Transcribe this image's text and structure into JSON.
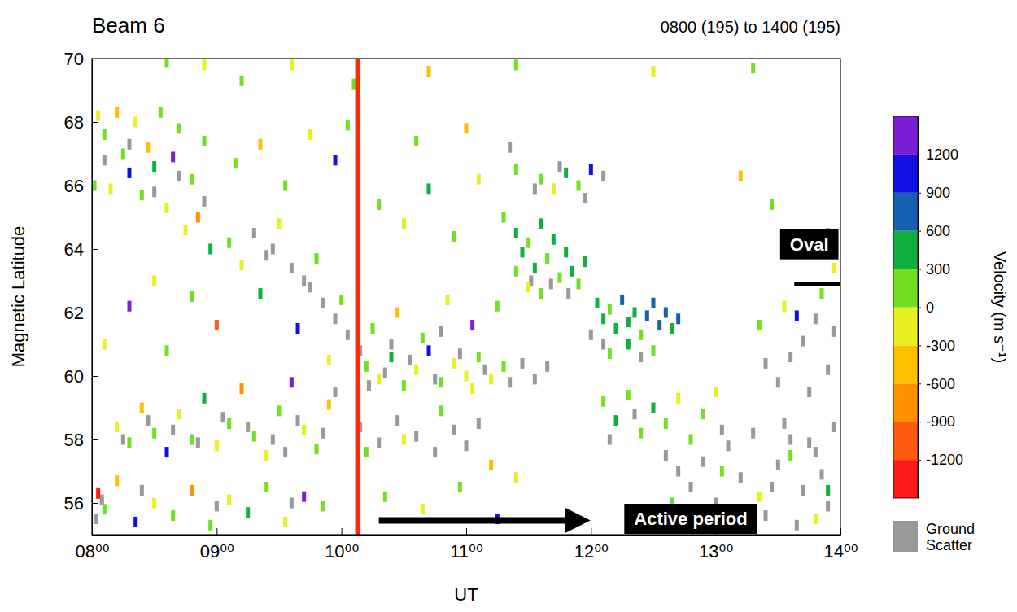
{
  "chart_data": {
    "type": "heatmap",
    "title": "Beam 6",
    "subtitle": "0800 (195) to 1400 (195)",
    "x_label": "UT",
    "y_label": "Magnetic Latitude",
    "xlim": [
      8,
      14
    ],
    "xticks": [
      {
        "value": 8,
        "label": "08⁰⁰"
      },
      {
        "value": 9,
        "label": "09⁰⁰"
      },
      {
        "value": 10,
        "label": "10⁰⁰"
      },
      {
        "value": 11,
        "label": "11⁰⁰"
      },
      {
        "value": 12,
        "label": "12⁰⁰"
      },
      {
        "value": 13,
        "label": "13⁰⁰"
      },
      {
        "value": 14,
        "label": "14⁰⁰"
      }
    ],
    "ylim": [
      55,
      70
    ],
    "yticks": [
      56,
      58,
      60,
      62,
      64,
      66,
      68,
      70
    ],
    "colorbar": {
      "label": "Velocity (m s⁻¹)",
      "range": [
        -1500,
        1500
      ],
      "ticks": [
        -1200,
        -900,
        -600,
        -300,
        0,
        300,
        600,
        900,
        1200
      ],
      "colors": [
        "#ff1a1a",
        "#ff5a10",
        "#ff9000",
        "#ffc000",
        "#e8f020",
        "#70e020",
        "#10b040",
        "#1560b0",
        "#1010e0",
        "#7a1fd6"
      ]
    },
    "cells": [
      [
        8.05,
        68.2,
        -150
      ],
      [
        8.1,
        67.6,
        150
      ],
      [
        8.2,
        68.3,
        -450
      ],
      [
        8.25,
        67.0,
        150
      ],
      [
        8.3,
        66.4,
        1050
      ],
      [
        8.35,
        68.0,
        -150
      ],
      [
        8.4,
        65.7,
        150
      ],
      [
        8.45,
        67.2,
        -450
      ],
      [
        8.5,
        66.6,
        450
      ],
      [
        8.55,
        68.3,
        150
      ],
      [
        8.6,
        65.3,
        -150
      ],
      [
        8.65,
        66.9,
        1350
      ],
      [
        8.7,
        67.8,
        150
      ],
      [
        8.75,
        64.6,
        -150
      ],
      [
        8.8,
        66.2,
        150
      ],
      [
        8.85,
        65.0,
        -750
      ],
      [
        8.9,
        67.4,
        150
      ],
      [
        8.95,
        64.0,
        450
      ],
      [
        8.15,
        65.9,
        -150
      ],
      [
        8.02,
        66.0,
        150
      ],
      [
        8.2,
        58.4,
        -150
      ],
      [
        8.3,
        57.9,
        150
      ],
      [
        8.4,
        59.0,
        -450
      ],
      [
        8.5,
        58.2,
        150
      ],
      [
        8.6,
        57.6,
        1050
      ],
      [
        8.7,
        58.8,
        -150
      ],
      [
        8.8,
        58.0,
        150
      ],
      [
        8.9,
        59.3,
        450
      ],
      [
        9.0,
        57.8,
        -150
      ],
      [
        9.1,
        58.5,
        150
      ],
      [
        9.2,
        59.6,
        -750
      ],
      [
        9.3,
        58.1,
        150
      ],
      [
        9.4,
        57.5,
        -150
      ],
      [
        9.5,
        58.9,
        150
      ],
      [
        9.6,
        59.8,
        1350
      ],
      [
        9.7,
        58.3,
        -150
      ],
      [
        9.8,
        57.7,
        150
      ],
      [
        9.9,
        59.1,
        -450
      ],
      [
        8.05,
        56.3,
        -1350
      ],
      [
        8.1,
        55.8,
        150
      ],
      [
        8.2,
        56.7,
        -450
      ],
      [
        8.35,
        55.4,
        1050
      ],
      [
        8.5,
        56.0,
        -150
      ],
      [
        8.65,
        55.6,
        150
      ],
      [
        8.8,
        56.4,
        -750
      ],
      [
        8.95,
        55.3,
        150
      ],
      [
        9.1,
        56.1,
        -150
      ],
      [
        9.25,
        55.7,
        450
      ],
      [
        9.4,
        56.5,
        150
      ],
      [
        9.55,
        55.4,
        -150
      ],
      [
        9.7,
        56.2,
        1350
      ],
      [
        9.85,
        55.9,
        150
      ],
      [
        9.1,
        64.2,
        150
      ],
      [
        9.2,
        63.5,
        -150
      ],
      [
        9.35,
        62.6,
        450
      ],
      [
        9.5,
        64.8,
        -150
      ],
      [
        9.65,
        61.5,
        1050
      ],
      [
        9.8,
        63.7,
        150
      ],
      [
        9.9,
        60.5,
        -150
      ],
      [
        10.0,
        62.4,
        150
      ],
      [
        9.15,
        66.7,
        150
      ],
      [
        9.35,
        67.3,
        -450
      ],
      [
        9.55,
        66.0,
        150
      ],
      [
        9.75,
        67.6,
        -150
      ],
      [
        9.95,
        66.8,
        1050
      ],
      [
        10.05,
        67.9,
        150
      ],
      [
        10.2,
        60.3,
        150
      ],
      [
        10.3,
        59.9,
        -150
      ],
      [
        10.4,
        60.6,
        450
      ],
      [
        10.5,
        59.7,
        150
      ],
      [
        10.6,
        60.2,
        -150
      ],
      [
        10.7,
        60.8,
        1050
      ],
      [
        10.8,
        59.8,
        150
      ],
      [
        10.9,
        60.4,
        -150
      ],
      [
        11.0,
        60.0,
        -150
      ],
      [
        11.05,
        59.6,
        -150
      ],
      [
        11.1,
        60.6,
        150
      ],
      [
        11.2,
        59.9,
        -150
      ],
      [
        11.3,
        60.3,
        150
      ],
      [
        10.25,
        61.5,
        150
      ],
      [
        10.45,
        62.0,
        -450
      ],
      [
        10.65,
        61.2,
        150
      ],
      [
        10.85,
        62.4,
        -150
      ],
      [
        11.05,
        61.6,
        1350
      ],
      [
        11.25,
        62.2,
        150
      ],
      [
        10.2,
        57.6,
        150
      ],
      [
        10.5,
        58.0,
        -150
      ],
      [
        10.8,
        58.9,
        150
      ],
      [
        11.2,
        57.2,
        -450
      ],
      [
        10.35,
        56.2,
        150
      ],
      [
        10.65,
        55.8,
        -150
      ],
      [
        10.95,
        56.5,
        150
      ],
      [
        11.25,
        55.5,
        1050
      ],
      [
        11.4,
        56.8,
        -150
      ],
      [
        10.3,
        65.4,
        150
      ],
      [
        10.5,
        64.8,
        -150
      ],
      [
        10.7,
        65.9,
        450
      ],
      [
        10.9,
        64.4,
        150
      ],
      [
        11.1,
        66.2,
        -150
      ],
      [
        11.3,
        65.0,
        150
      ],
      [
        10.6,
        67.4,
        150
      ],
      [
        11.0,
        67.8,
        -450
      ],
      [
        11.4,
        66.5,
        150
      ],
      [
        11.6,
        66.2,
        150
      ],
      [
        11.7,
        65.9,
        -150
      ],
      [
        11.8,
        66.4,
        450
      ],
      [
        11.9,
        66.0,
        150
      ],
      [
        12.0,
        66.5,
        1050
      ],
      [
        11.4,
        64.5,
        450
      ],
      [
        11.45,
        63.9,
        450
      ],
      [
        11.5,
        64.2,
        150
      ],
      [
        11.55,
        63.4,
        450
      ],
      [
        11.6,
        64.8,
        450
      ],
      [
        11.65,
        63.7,
        150
      ],
      [
        11.7,
        64.3,
        450
      ],
      [
        11.75,
        63.1,
        150
      ],
      [
        11.8,
        63.9,
        450
      ],
      [
        11.85,
        63.3,
        450
      ],
      [
        11.9,
        62.9,
        150
      ],
      [
        11.5,
        62.8,
        -150
      ],
      [
        11.95,
        63.6,
        450
      ],
      [
        11.4,
        63.3,
        150
      ],
      [
        11.6,
        62.6,
        150
      ],
      [
        12.05,
        62.3,
        450
      ],
      [
        12.1,
        61.8,
        450
      ],
      [
        12.15,
        62.1,
        150
      ],
      [
        12.2,
        61.5,
        450
      ],
      [
        12.25,
        62.4,
        750
      ],
      [
        12.3,
        61.7,
        450
      ],
      [
        12.35,
        62.0,
        450
      ],
      [
        12.4,
        61.3,
        150
      ],
      [
        12.45,
        61.9,
        750
      ],
      [
        12.5,
        62.3,
        750
      ],
      [
        12.55,
        61.6,
        750
      ],
      [
        12.6,
        62.0,
        750
      ],
      [
        12.65,
        61.5,
        450
      ],
      [
        12.7,
        61.8,
        750
      ],
      [
        12.3,
        61.0,
        450
      ],
      [
        12.5,
        60.8,
        150
      ],
      [
        12.15,
        60.7,
        150
      ],
      [
        12.1,
        59.2,
        150
      ],
      [
        12.2,
        58.6,
        450
      ],
      [
        12.3,
        59.4,
        150
      ],
      [
        12.4,
        58.2,
        150
      ],
      [
        12.5,
        59.0,
        450
      ],
      [
        12.6,
        58.5,
        150
      ],
      [
        12.7,
        59.3,
        -150
      ],
      [
        12.8,
        58.0,
        150
      ],
      [
        12.9,
        58.8,
        150
      ],
      [
        13.0,
        59.5,
        -150
      ],
      [
        12.65,
        56.0,
        150
      ],
      [
        12.85,
        55.4,
        -150
      ],
      [
        13.05,
        57.0,
        150
      ],
      [
        13.35,
        56.2,
        -150
      ],
      [
        13.6,
        57.5,
        150
      ],
      [
        13.8,
        55.5,
        -150
      ],
      [
        13.9,
        56.4,
        450
      ],
      [
        13.35,
        61.6,
        150
      ],
      [
        13.55,
        62.2,
        -150
      ],
      [
        13.65,
        61.9,
        1050
      ],
      [
        13.85,
        62.6,
        150
      ],
      [
        13.95,
        63.4,
        -150
      ],
      [
        13.45,
        65.4,
        150
      ],
      [
        13.2,
        66.3,
        -450
      ],
      [
        13.9,
        64.5,
        150
      ],
      [
        8.9,
        69.8,
        -150
      ],
      [
        9.2,
        69.3,
        150
      ],
      [
        9.6,
        69.8,
        -150
      ],
      [
        10.1,
        69.2,
        150
      ],
      [
        10.7,
        69.6,
        -450
      ],
      [
        11.4,
        69.8,
        150
      ],
      [
        12.5,
        69.6,
        -150
      ],
      [
        13.3,
        69.7,
        150
      ],
      [
        8.6,
        69.9,
        150
      ],
      [
        8.1,
        61.0,
        -150
      ],
      [
        8.3,
        62.2,
        1350
      ],
      [
        8.6,
        60.8,
        150
      ],
      [
        9.0,
        61.6,
        -1050
      ],
      [
        8.5,
        63.0,
        -150
      ],
      [
        8.8,
        62.5,
        150
      ]
    ],
    "ground_scatter": {
      "label": "Ground Scatter",
      "color": "#999999",
      "points": [
        [
          8.1,
          66.8
        ],
        [
          8.3,
          67.3
        ],
        [
          8.5,
          65.8
        ],
        [
          8.7,
          66.3
        ],
        [
          8.9,
          65.5
        ],
        [
          8.25,
          58.0
        ],
        [
          8.45,
          58.6
        ],
        [
          8.65,
          58.3
        ],
        [
          8.85,
          57.9
        ],
        [
          9.05,
          58.7
        ],
        [
          9.25,
          58.4
        ],
        [
          9.45,
          58.0
        ],
        [
          9.65,
          58.6
        ],
        [
          9.85,
          58.2
        ],
        [
          9.95,
          59.5
        ],
        [
          9.55,
          57.6
        ],
        [
          8.03,
          55.5
        ],
        [
          8.08,
          56.1
        ],
        [
          8.4,
          56.4
        ],
        [
          9.0,
          55.9
        ],
        [
          9.6,
          56.0
        ],
        [
          9.3,
          64.5
        ],
        [
          9.45,
          64.0
        ],
        [
          9.6,
          63.4
        ],
        [
          9.75,
          62.8
        ],
        [
          9.85,
          62.3
        ],
        [
          9.95,
          61.8
        ],
        [
          10.05,
          61.3
        ],
        [
          10.15,
          60.8
        ],
        [
          9.4,
          63.8
        ],
        [
          9.7,
          63.0
        ],
        [
          10.22,
          59.7
        ],
        [
          10.35,
          60.1
        ],
        [
          10.55,
          60.5
        ],
        [
          10.75,
          59.9
        ],
        [
          10.95,
          60.7
        ],
        [
          11.15,
          60.2
        ],
        [
          11.35,
          59.8
        ],
        [
          11.45,
          60.4
        ],
        [
          11.55,
          59.9
        ],
        [
          11.65,
          60.3
        ],
        [
          10.15,
          58.4
        ],
        [
          10.3,
          57.9
        ],
        [
          10.45,
          58.6
        ],
        [
          10.6,
          58.1
        ],
        [
          10.75,
          57.6
        ],
        [
          10.9,
          58.3
        ],
        [
          11.0,
          57.8
        ],
        [
          11.1,
          58.5
        ],
        [
          10.4,
          61.0
        ],
        [
          10.8,
          61.4
        ],
        [
          11.55,
          65.9
        ],
        [
          11.75,
          66.6
        ],
        [
          11.95,
          65.6
        ],
        [
          12.1,
          66.3
        ],
        [
          11.35,
          67.2
        ],
        [
          11.52,
          63.0
        ],
        [
          11.68,
          62.9
        ],
        [
          11.82,
          62.6
        ],
        [
          12.0,
          61.3
        ],
        [
          12.1,
          61.0
        ],
        [
          12.4,
          60.6
        ],
        [
          12.15,
          58.0
        ],
        [
          12.35,
          58.8
        ],
        [
          12.6,
          57.5
        ],
        [
          12.7,
          57.0
        ],
        [
          12.8,
          56.5
        ],
        [
          12.9,
          57.3
        ],
        [
          13.0,
          56.0
        ],
        [
          13.1,
          57.8
        ],
        [
          13.2,
          56.8
        ],
        [
          13.3,
          58.2
        ],
        [
          13.4,
          55.6
        ],
        [
          13.5,
          57.2
        ],
        [
          13.6,
          58.0
        ],
        [
          13.7,
          56.4
        ],
        [
          13.8,
          57.6
        ],
        [
          13.9,
          55.9
        ],
        [
          13.95,
          58.4
        ],
        [
          13.05,
          58.3
        ],
        [
          13.25,
          55.4
        ],
        [
          13.45,
          56.5
        ],
        [
          13.65,
          55.3
        ],
        [
          13.85,
          56.9
        ],
        [
          13.15,
          55.7
        ],
        [
          13.55,
          58.5
        ],
        [
          13.75,
          57.9
        ],
        [
          13.4,
          60.4
        ],
        [
          13.5,
          59.8
        ],
        [
          13.6,
          60.6
        ],
        [
          13.7,
          61.1
        ],
        [
          13.8,
          61.8
        ],
        [
          13.9,
          60.2
        ],
        [
          13.95,
          61.4
        ],
        [
          13.75,
          59.5
        ]
      ]
    },
    "lines": [
      {
        "x": [
          10.13,
          10.13
        ],
        "y": [
          55,
          70
        ],
        "color": "#ff2a00"
      },
      {
        "x": [
          10.3,
          11.85
        ],
        "y": [
          55.45,
          55.45
        ],
        "color": "#000000",
        "marker": "arrow"
      },
      {
        "x": [
          13.63,
          14.0
        ],
        "y": [
          62.9,
          62.9
        ],
        "color": "#000000"
      }
    ],
    "annotations": [
      {
        "text": "Oval",
        "x": 13.75,
        "y": 64.15
      },
      {
        "text": "Active period",
        "x": 12.8,
        "y": 55.5
      }
    ]
  }
}
